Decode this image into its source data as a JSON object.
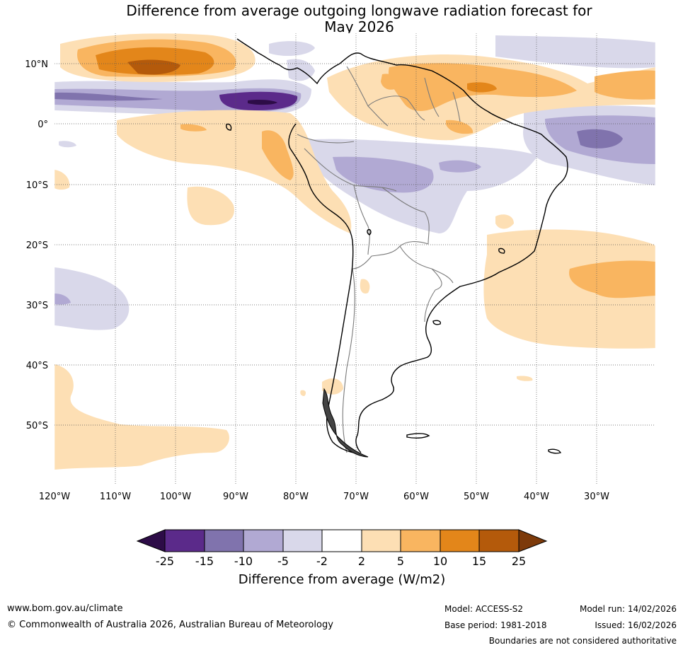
{
  "title": {
    "line1": "Difference from average outgoing longwave radiation forecast for",
    "line2": "May 2026"
  },
  "map": {
    "lat_labels": [
      "10°N",
      "0°",
      "10°S",
      "20°S",
      "30°S",
      "40°S",
      "50°S"
    ],
    "lon_labels": [
      "120°W",
      "110°W",
      "100°W",
      "90°W",
      "80°W",
      "70°W",
      "60°W",
      "50°W",
      "40°W",
      "30°W"
    ]
  },
  "colorbar": {
    "tick_labels": [
      "-25",
      "-15",
      "-10",
      "-5",
      "-2",
      "2",
      "5",
      "10",
      "15",
      "25"
    ],
    "colors": [
      "#2d0c47",
      "#5b2a8a",
      "#8073ad",
      "#b1a9d3",
      "#d9d8ea",
      "#ffffff",
      "#fddfb4",
      "#f9b560",
      "#e3861a",
      "#b45a0b",
      "#7d3a0a"
    ],
    "title": "Difference from average (W/m2)"
  },
  "footer": {
    "website": "www.bom.gov.au/climate",
    "copyright": "© Commonwealth of Australia 2026, Australian Bureau of Meteorology",
    "model": "Model: ACCESS-S2",
    "base_period": "Base period: 1981-2018",
    "model_run": "Model run: 14/02/2026",
    "issued": "Issued: 16/02/2026",
    "disclaimer": "Boundaries are not considered authoritative"
  }
}
